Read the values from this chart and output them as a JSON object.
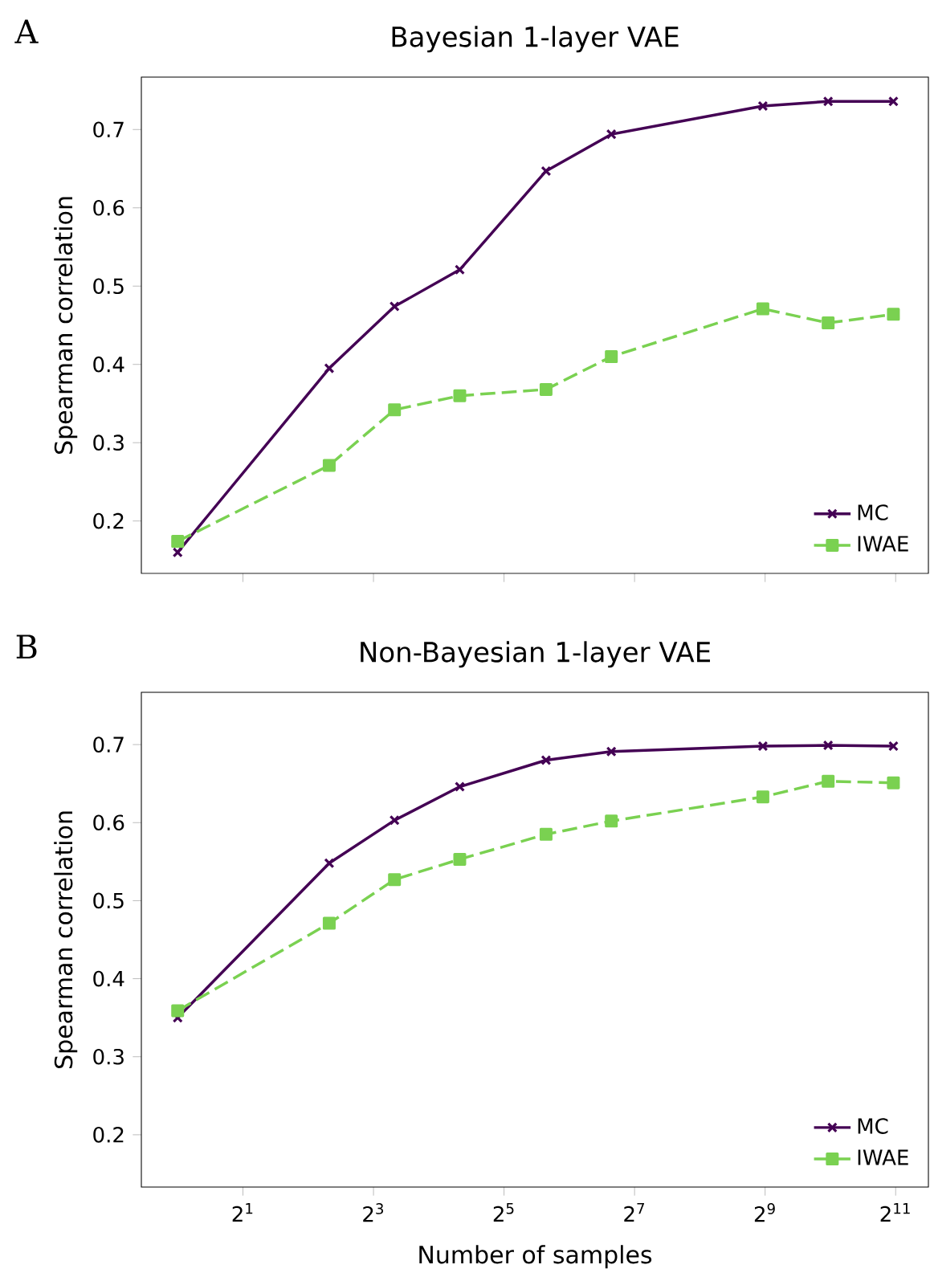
{
  "chart_data": [
    {
      "type": "line",
      "title": "Bayesian 1-layer VAE",
      "ylabel": "Spearman correlation",
      "annotations": [
        "A"
      ],
      "x": [
        1,
        5,
        10,
        20,
        50,
        100,
        500,
        1000,
        2000
      ],
      "xticks": [
        {
          "value": 2,
          "label": null
        },
        {
          "value": 8,
          "label": null
        },
        {
          "value": 32,
          "label": null
        },
        {
          "value": 128,
          "label": null
        },
        {
          "value": 512,
          "label": null
        },
        {
          "value": 2048,
          "label": null
        }
      ],
      "series": [
        {
          "name": "MC",
          "color": "#440154",
          "marker": "cross",
          "line_style": "solid",
          "values": [
            0.16,
            0.395,
            0.474,
            0.521,
            0.647,
            0.694,
            0.73,
            0.736,
            0.736
          ]
        },
        {
          "name": "IWAE",
          "color": "#7ad151",
          "marker": "square",
          "line_style": "dashed",
          "values": [
            0.174,
            0.271,
            0.342,
            0.36,
            0.368,
            0.41,
            0.471,
            0.453,
            0.464
          ]
        }
      ],
      "log": "x",
      "xlim": [
        0.68,
        2900
      ],
      "ylim": [
        0.133,
        0.767
      ],
      "yticks": [
        0.2,
        0.3,
        0.4,
        0.5,
        0.6,
        0.7
      ],
      "tick_labels": "y",
      "legend": "bottom right",
      "grid": false
    },
    {
      "type": "line",
      "title": "Non-Bayesian 1-layer VAE",
      "xlabel": "Number of samples",
      "ylabel": "Spearman correlation",
      "annotations": [
        "B"
      ],
      "x": [
        1,
        5,
        10,
        20,
        50,
        100,
        500,
        1000,
        2000
      ],
      "series": [
        {
          "name": "MC",
          "color": "#440154",
          "marker": "cross",
          "line_style": "solid",
          "values": [
            0.35,
            0.548,
            0.603,
            0.646,
            0.68,
            0.691,
            0.698,
            0.699,
            0.698
          ]
        },
        {
          "name": "IWAE",
          "color": "#7ad151",
          "marker": "square",
          "line_style": "dashed",
          "values": [
            0.359,
            0.471,
            0.527,
            0.553,
            0.585,
            0.602,
            0.633,
            0.653,
            0.651
          ]
        }
      ],
      "log": "x",
      "xlim": [
        0.68,
        2900
      ],
      "ylim": [
        0.133,
        0.767
      ],
      "xticks": [
        {
          "value": 2,
          "label": "2$^{1}$"
        },
        {
          "value": 8,
          "label": "2$^{3}$"
        },
        {
          "value": 32,
          "label": "2$^{5}$"
        },
        {
          "value": 128,
          "label": "2$^{7}$"
        },
        {
          "value": 512,
          "label": "2$^{9}$"
        },
        {
          "value": 2048,
          "label": "2$^{11}$"
        }
      ],
      "yticks": [
        0.2,
        0.3,
        0.4,
        0.5,
        0.6,
        0.7
      ],
      "legend": "bottom right",
      "grid": false
    }
  ]
}
